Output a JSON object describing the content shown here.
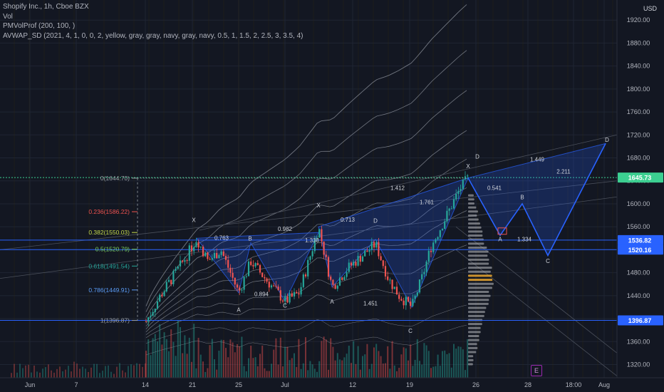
{
  "legend": {
    "symbol": "Shopify Inc., 1h, Cboe BZX",
    "vol": "Vol",
    "pmvolprof": "PMVolProf (200, 100, )",
    "avwap": "AVWAP_SD (2021, 4, 1, 0, 0, 2, yellow, gray, gray, navy, gray, navy, 0.5, 1, 1.5, 2, 2.5, 3, 3.5, 4)"
  },
  "currency": "USD",
  "badge": "E",
  "colors": {
    "bg": "#131722",
    "up": "#26a69a",
    "down": "#ef5350",
    "fib_line": "#9aa0a6",
    "harmonic": "#2962ff",
    "price_line": "#3ccf91"
  },
  "chart_data": {
    "type": "candlestick",
    "y_range": [
      1297,
      1955
    ],
    "y_ticks": [
      1320,
      1360,
      1400,
      1440,
      1480,
      1520,
      1560,
      1600,
      1640,
      1680,
      1720,
      1760,
      1800,
      1840,
      1880,
      1920,
      1960
    ],
    "x_ticks": [
      {
        "label": "Jun",
        "x": 42
      },
      {
        "label": "7",
        "x": 107
      },
      {
        "label": "14",
        "x": 204
      },
      {
        "label": "21",
        "x": 270
      },
      {
        "label": "25",
        "x": 335
      },
      {
        "label": "Jul",
        "x": 400
      },
      {
        "label": "12",
        "x": 495
      },
      {
        "label": "19",
        "x": 575
      },
      {
        "label": "26",
        "x": 668
      },
      {
        "label": "28",
        "x": 741
      },
      {
        "label": "18:00",
        "x": 805
      },
      {
        "label": "Aug",
        "x": 848
      }
    ],
    "price_marks": [
      {
        "label": "1645.73",
        "value": 1645.73,
        "color": "#3ccf91"
      },
      {
        "label": "1536.82",
        "value": 1536.82,
        "color": "#2962ff"
      },
      {
        "label": "1520.16",
        "value": 1520.16,
        "color": "#2962ff"
      },
      {
        "label": "1396.87",
        "value": 1396.87,
        "color": "#2962ff"
      }
    ],
    "fib_levels": [
      {
        "label": "0(1644.70)",
        "value": 1644.7,
        "color": "#9aa0a6"
      },
      {
        "label": "0.236(1586.22)",
        "value": 1586.22,
        "color": "#ef5350"
      },
      {
        "label": "0.382(1550.03)",
        "value": 1550.03,
        "color": "#c4d94a"
      },
      {
        "label": "0.5(1520.79)",
        "value": 1520.79,
        "color": "#7bd35b"
      },
      {
        "label": "0.618(1491.54)",
        "value": 1491.54,
        "color": "#26a69a"
      },
      {
        "label": "0.786(1449.91)",
        "value": 1449.91,
        "color": "#5b9cf6"
      },
      {
        "label": "1(1396.87)",
        "value": 1396.87,
        "color": "#9aa0a6"
      }
    ],
    "harmonic_labels": [
      {
        "t": "X",
        "x": 272,
        "v": 1568
      },
      {
        "t": "A",
        "x": 335,
        "v": 1412
      },
      {
        "t": "B",
        "x": 351,
        "v": 1536
      },
      {
        "t": "C",
        "x": 400,
        "v": 1419
      },
      {
        "t": "X",
        "x": 447,
        "v": 1594
      },
      {
        "t": "A",
        "x": 466,
        "v": 1426
      },
      {
        "t": "D",
        "x": 527,
        "v": 1567
      },
      {
        "t": "C",
        "x": 576,
        "v": 1375
      },
      {
        "t": "X",
        "x": 657,
        "v": 1662
      },
      {
        "t": "D",
        "x": 670,
        "v": 1679
      },
      {
        "t": "A",
        "x": 702,
        "v": 1535
      },
      {
        "t": "B",
        "x": 733,
        "v": 1608
      },
      {
        "t": "C",
        "x": 769,
        "v": 1497
      },
      {
        "t": "D",
        "x": 852,
        "v": 1708
      }
    ],
    "ratio_labels": [
      {
        "t": "0.763",
        "x": 311,
        "v": 1537
      },
      {
        "t": "0.982",
        "x": 400,
        "v": 1553
      },
      {
        "t": "1.338",
        "x": 438,
        "v": 1533
      },
      {
        "t": "0.713",
        "x": 488,
        "v": 1569
      },
      {
        "t": "0.894",
        "x": 367,
        "v": 1439
      },
      {
        "t": "1.451",
        "x": 520,
        "v": 1423
      },
      {
        "t": "1.412",
        "x": 558,
        "v": 1624
      },
      {
        "t": "1.761",
        "x": 599,
        "v": 1599
      },
      {
        "t": "0.541",
        "x": 694,
        "v": 1624
      },
      {
        "t": "1.449",
        "x": 754,
        "v": 1674
      },
      {
        "t": "2.211",
        "x": 791,
        "v": 1653
      },
      {
        "t": "1.334",
        "x": 736,
        "v": 1535
      }
    ],
    "volume_profile_note": "vertical volume profile at ~Jul 25"
  }
}
